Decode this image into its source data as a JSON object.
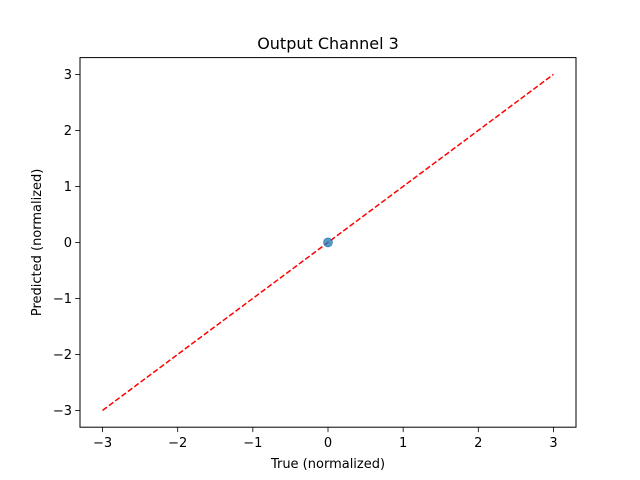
{
  "chart_data": {
    "type": "scatter",
    "title": "Output Channel 3",
    "xlabel": "True (normalized)",
    "ylabel": "Predicted (normalized)",
    "xlim": [
      -3.3,
      3.3
    ],
    "ylim": [
      -3.3,
      3.3
    ],
    "x_ticks": [
      -3,
      -2,
      -1,
      0,
      1,
      2,
      3
    ],
    "y_ticks": [
      -3,
      -2,
      -1,
      0,
      1,
      2,
      3
    ],
    "x_tick_labels": [
      "−3",
      "−2",
      "−1",
      "0",
      "1",
      "2",
      "3"
    ],
    "y_tick_labels": [
      "−3",
      "−2",
      "−1",
      "0",
      "1",
      "2",
      "3"
    ],
    "grid": false,
    "series": [
      {
        "kind": "points",
        "x": [
          0.0
        ],
        "y": [
          0.0
        ],
        "color": "#1f77b4"
      },
      {
        "kind": "reference-line",
        "x": [
          -3,
          3
        ],
        "y": [
          -3,
          3
        ],
        "color": "#ff0000",
        "style": "dashed"
      }
    ]
  }
}
